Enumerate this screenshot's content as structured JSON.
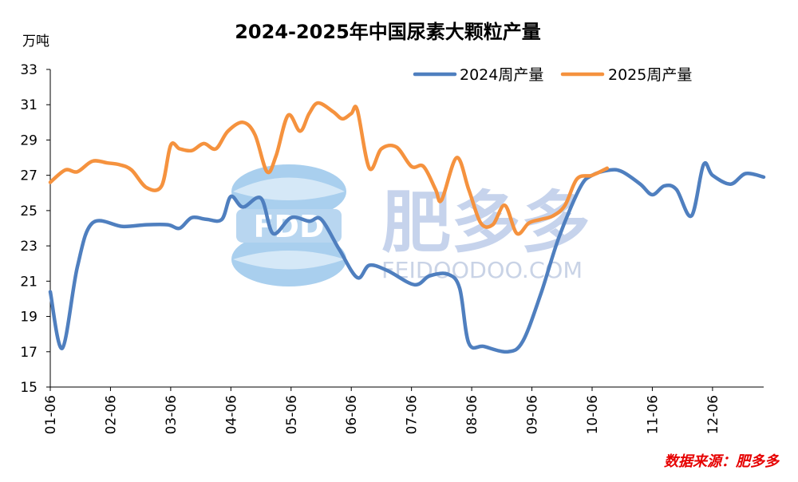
{
  "chart_data": {
    "type": "line",
    "title": "2024-2025年中国尿素大颗粒产量",
    "ylabel": "万吨",
    "ylim": [
      15,
      33
    ],
    "yticks": [
      15,
      17,
      19,
      21,
      23,
      25,
      27,
      29,
      31,
      33
    ],
    "xlim": [
      1.0,
      12.85
    ],
    "x_ticks": [
      {
        "x": 1.0,
        "label": "01-06"
      },
      {
        "x": 2.0,
        "label": "02-06"
      },
      {
        "x": 3.0,
        "label": "03-06"
      },
      {
        "x": 4.0,
        "label": "04-06"
      },
      {
        "x": 5.0,
        "label": "05-06"
      },
      {
        "x": 6.0,
        "label": "06-06"
      },
      {
        "x": 7.0,
        "label": "07-06"
      },
      {
        "x": 8.0,
        "label": "08-06"
      },
      {
        "x": 9.0,
        "label": "09-06"
      },
      {
        "x": 10.0,
        "label": "10-06"
      },
      {
        "x": 11.0,
        "label": "11-06"
      },
      {
        "x": 12.0,
        "label": "12-06"
      }
    ],
    "legend_position": "top-right",
    "series": [
      {
        "name": "2024周产量",
        "color": "#4f7fbf",
        "x": [
          1.0,
          1.2,
          1.45,
          1.7,
          2.2,
          2.6,
          2.95,
          3.15,
          3.35,
          3.6,
          3.85,
          4.0,
          4.2,
          4.5,
          4.7,
          5.0,
          5.3,
          5.5,
          5.8,
          6.1,
          6.3,
          6.6,
          7.05,
          7.3,
          7.6,
          7.8,
          7.95,
          8.2,
          8.6,
          8.85,
          9.15,
          9.45,
          9.8,
          10.0,
          10.3,
          10.5,
          10.8,
          11.0,
          11.2,
          11.4,
          11.65,
          11.85,
          12.0,
          12.3,
          12.55,
          12.85
        ],
        "y": [
          20.4,
          17.2,
          21.8,
          24.3,
          24.1,
          24.2,
          24.2,
          24.0,
          24.6,
          24.5,
          24.5,
          25.8,
          25.2,
          25.7,
          23.7,
          24.6,
          24.4,
          24.5,
          22.8,
          21.2,
          21.9,
          21.6,
          20.8,
          21.3,
          21.4,
          20.6,
          17.5,
          17.3,
          17.0,
          17.6,
          20.3,
          23.5,
          26.3,
          27.0,
          27.3,
          27.2,
          26.5,
          25.9,
          26.4,
          26.2,
          24.7,
          27.6,
          27.0,
          26.5,
          27.1,
          26.9
        ]
      },
      {
        "name": "2025周产量",
        "color": "#f5923e",
        "x": [
          1.0,
          1.25,
          1.45,
          1.7,
          1.95,
          2.15,
          2.35,
          2.6,
          2.85,
          3.0,
          3.15,
          3.35,
          3.55,
          3.75,
          3.95,
          4.2,
          4.4,
          4.6,
          4.75,
          4.95,
          5.15,
          5.3,
          5.45,
          5.7,
          5.85,
          6.0,
          6.1,
          6.3,
          6.5,
          6.75,
          7.0,
          7.2,
          7.4,
          7.5,
          7.75,
          7.95,
          8.15,
          8.35,
          8.55,
          8.75,
          8.95,
          9.15,
          9.35,
          9.55,
          9.75,
          10.0,
          10.25
        ],
        "y": [
          26.6,
          27.3,
          27.2,
          27.8,
          27.7,
          27.6,
          27.3,
          26.3,
          26.4,
          28.7,
          28.5,
          28.4,
          28.8,
          28.5,
          29.5,
          30.0,
          29.3,
          27.2,
          28.1,
          30.4,
          29.5,
          30.5,
          31.1,
          30.6,
          30.2,
          30.5,
          30.7,
          27.4,
          28.5,
          28.6,
          27.5,
          27.5,
          26.2,
          25.6,
          28.0,
          26.2,
          24.3,
          24.2,
          25.3,
          23.7,
          24.3,
          24.5,
          24.7,
          25.3,
          26.8,
          27.0,
          27.4
        ]
      }
    ]
  },
  "watermark": {
    "logo_text": "FDD",
    "brand": "肥多多",
    "url": "FEIDOODOO.COM"
  },
  "source_label": "数据来源：肥多多"
}
